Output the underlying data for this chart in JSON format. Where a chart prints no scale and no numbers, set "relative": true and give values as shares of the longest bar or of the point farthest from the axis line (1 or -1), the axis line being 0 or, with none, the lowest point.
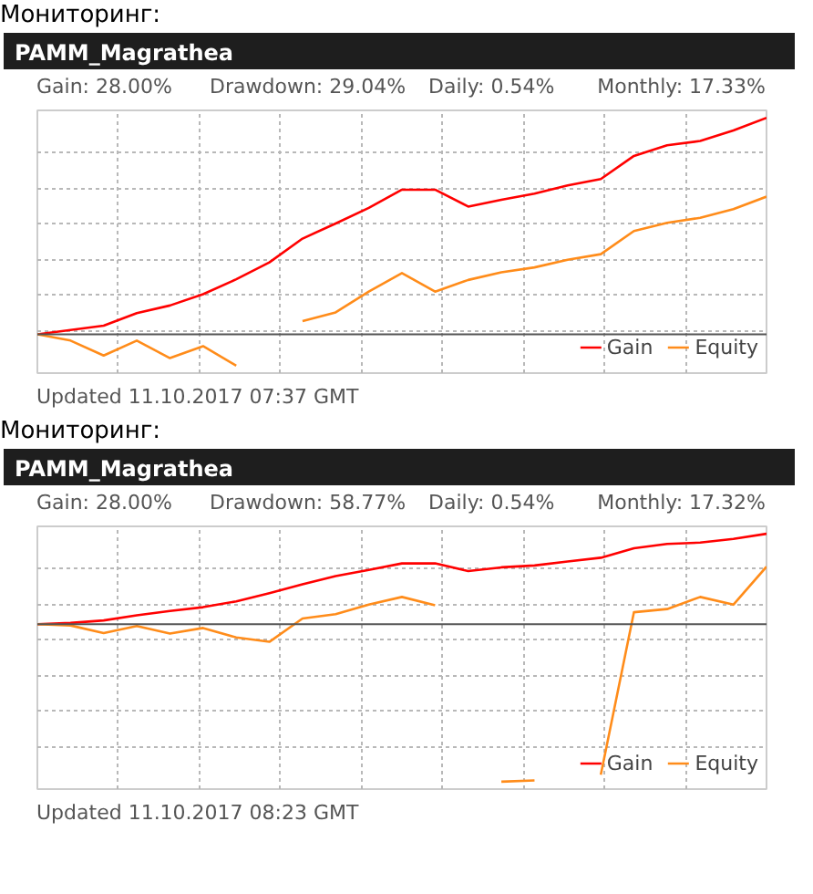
{
  "chart_data": [
    {
      "type": "line",
      "title": "PAMM_Magrathea",
      "relative": true,
      "grid": true,
      "legend": "bottom right",
      "line_style": "solid",
      "annotations": [
        "Мониторинг:",
        "Gain: 28.00%",
        "Drawdown: 29.04%",
        "Daily: 0.54%",
        "Monthly: 17.33%",
        "Updated 11.10.2017 07:37 GMT"
      ],
      "categories": [
        null,
        null,
        null,
        null,
        null,
        null,
        null,
        null,
        null,
        null,
        null,
        null,
        null,
        null,
        null,
        null,
        null,
        null,
        null,
        null,
        null,
        null,
        null
      ],
      "series": [
        {
          "name": "Gain",
          "color": "#ff0000",
          "values": [
            0,
            0.02,
            0.04,
            0.098,
            0.133,
            0.185,
            0.254,
            0.332,
            0.442,
            0.512,
            0.584,
            0.668,
            0.668,
            0.59,
            0.621,
            0.65,
            0.688,
            0.717,
            0.824,
            0.873,
            0.893,
            0.942,
            1.0
          ]
        },
        {
          "name": "Equity",
          "color": "#ff8c1a",
          "values": [
            0,
            -0.029,
            -0.098,
            -0.029,
            -0.11,
            -0.055,
            -0.145,
            null,
            0.061,
            0.101,
            0.197,
            0.283,
            0.197,
            0.251,
            0.286,
            0.309,
            0.344,
            0.37,
            0.477,
            0.515,
            0.538,
            0.578,
            0.636
          ]
        }
      ]
    },
    {
      "type": "line",
      "title": "PAMM_Magrathea",
      "relative": true,
      "grid": true,
      "legend": "bottom right",
      "line_style": "solid",
      "annotations": [
        "Мониторинг:",
        "Gain: 28.00%",
        "Drawdown: 58.77%",
        "Daily: 0.54%",
        "Monthly: 17.32%",
        "Updated 11.10.2017 08:23 GMT"
      ],
      "categories": [
        null,
        null,
        null,
        null,
        null,
        null,
        null,
        null,
        null,
        null,
        null,
        null,
        null,
        null,
        null,
        null,
        null,
        null,
        null,
        null,
        null,
        null,
        null
      ],
      "series": [
        {
          "name": "Gain",
          "color": "#ff0000",
          "values": [
            0,
            0.008,
            0.024,
            0.056,
            0.084,
            0.108,
            0.145,
            0.197,
            0.253,
            0.305,
            0.345,
            0.386,
            0.386,
            0.337,
            0.361,
            0.373,
            0.398,
            0.422,
            0.482,
            0.51,
            0.518,
            0.542,
            0.574
          ]
        },
        {
          "name": "Equity",
          "color": "#ff8c1a",
          "values": [
            0,
            -0.008,
            -0.056,
            -0.012,
            -0.06,
            -0.024,
            -0.084,
            -0.112,
            0.036,
            0.064,
            0.124,
            0.173,
            0.12,
            null,
            -1.0,
            -0.992,
            null,
            -0.956,
            0.076,
            0.096,
            0.173,
            0.124,
            0.365
          ]
        }
      ]
    }
  ]
}
